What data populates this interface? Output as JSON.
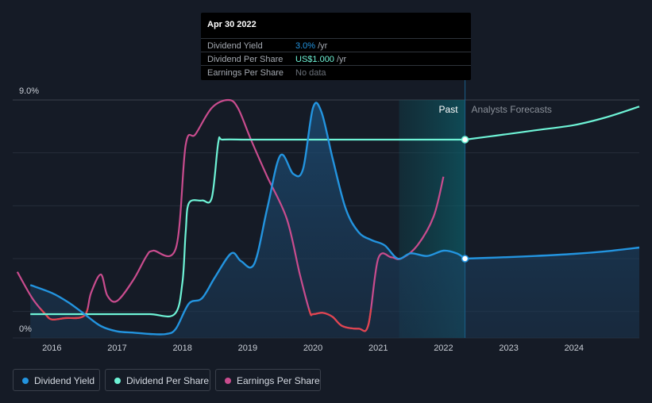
{
  "chart_data": {
    "type": "line",
    "y_axis": {
      "top_label": "9.0%",
      "bottom_label": "0%",
      "ylim": [
        0,
        9
      ]
    },
    "x_axis": {
      "ticks": [
        "2016",
        "2017",
        "2018",
        "2019",
        "2020",
        "2021",
        "2022",
        "2023",
        "2024"
      ],
      "range": [
        2015.4,
        2025.0
      ]
    },
    "regions": {
      "past_label": "Past",
      "forecast_label": "Analysts Forecasts",
      "now": 2022.33
    },
    "colors": {
      "dividend_yield": "#2394df",
      "dividend_per_share": "#6ef3d6",
      "earnings_per_share": "#c94c8e",
      "earnings_negative": "#e0454f"
    },
    "series": [
      {
        "name": "Dividend Yield",
        "key": "dividend_yield",
        "x": [
          2015.67,
          2016.0,
          2016.25,
          2016.5,
          2016.75,
          2017.0,
          2017.25,
          2017.5,
          2017.75,
          2017.9,
          2018.1,
          2018.3,
          2018.5,
          2018.75,
          2018.9,
          2019.1,
          2019.3,
          2019.5,
          2019.7,
          2019.85,
          2020.0,
          2020.13,
          2020.3,
          2020.5,
          2020.7,
          2020.9,
          2021.1,
          2021.3,
          2021.5,
          2021.75,
          2022.0,
          2022.2,
          2022.33
        ],
        "values": [
          2.0,
          1.7,
          1.35,
          0.9,
          0.45,
          0.25,
          0.2,
          0.15,
          0.15,
          0.35,
          1.3,
          1.5,
          2.3,
          3.2,
          2.9,
          2.8,
          4.9,
          6.9,
          6.2,
          6.4,
          8.7,
          8.55,
          6.8,
          4.9,
          4.0,
          3.7,
          3.5,
          3.0,
          3.2,
          3.1,
          3.3,
          3.2,
          3.0
        ],
        "forecast_x": [
          2022.33,
          2022.8,
          2023.4,
          2024.0,
          2024.5,
          2025.0
        ],
        "forecast_values": [
          3.0,
          3.04,
          3.1,
          3.18,
          3.28,
          3.42
        ]
      },
      {
        "name": "Dividend Per Share",
        "key": "dividend_per_share",
        "x": [
          2015.67,
          2016.0,
          2016.5,
          2017.0,
          2017.5,
          2017.88,
          2018.0,
          2018.05,
          2018.1,
          2018.3,
          2018.45,
          2018.55,
          2018.62,
          2019.0,
          2019.5,
          2020.0,
          2020.5,
          2021.0,
          2021.5,
          2022.0,
          2022.33
        ],
        "values": [
          0.9,
          0.9,
          0.9,
          0.9,
          0.9,
          0.9,
          2.1,
          4.0,
          5.1,
          5.2,
          5.3,
          7.4,
          7.5,
          7.5,
          7.5,
          7.5,
          7.5,
          7.5,
          7.5,
          7.5,
          7.5
        ],
        "forecast_x": [
          2022.33,
          2022.8,
          2023.4,
          2024.0,
          2024.5,
          2025.0
        ],
        "forecast_values": [
          7.5,
          7.65,
          7.85,
          8.05,
          8.35,
          8.75
        ]
      },
      {
        "name": "Earnings Per Share",
        "key": "earnings_per_share",
        "x": [
          2015.47,
          2015.7,
          2015.9,
          2016.0,
          2016.2,
          2016.5,
          2016.6,
          2016.75,
          2016.85,
          2017.0,
          2017.25,
          2017.45,
          2017.55,
          2017.9,
          2018.05,
          2018.2,
          2018.45,
          2018.7,
          2018.85,
          2019.05,
          2019.3,
          2019.6,
          2019.8,
          2019.95,
          2020.0,
          2020.15,
          2020.3,
          2020.45,
          2020.7,
          2020.85,
          2021.0,
          2021.2,
          2021.35,
          2021.6,
          2021.85,
          2022.0
        ],
        "values": [
          2.5,
          1.5,
          0.9,
          0.7,
          0.75,
          0.85,
          1.7,
          2.4,
          1.6,
          1.4,
          2.2,
          3.1,
          3.3,
          3.4,
          7.3,
          7.7,
          8.7,
          9.0,
          8.7,
          7.5,
          6.1,
          4.5,
          2.4,
          1.0,
          0.9,
          0.95,
          0.8,
          0.45,
          0.35,
          0.5,
          3.0,
          3.05,
          3.0,
          3.5,
          4.6,
          6.1
        ]
      }
    ],
    "tooltip": {
      "date": "Apr 30 2022",
      "rows": [
        {
          "label": "Dividend Yield",
          "value": "3.0%",
          "unit": "/yr"
        },
        {
          "label": "Dividend Per Share",
          "value": "US$1.000",
          "unit": "/yr"
        },
        {
          "label": "Earnings Per Share",
          "value": "No data",
          "unit": ""
        }
      ]
    },
    "legend": [
      "Dividend Yield",
      "Dividend Per Share",
      "Earnings Per Share"
    ]
  }
}
